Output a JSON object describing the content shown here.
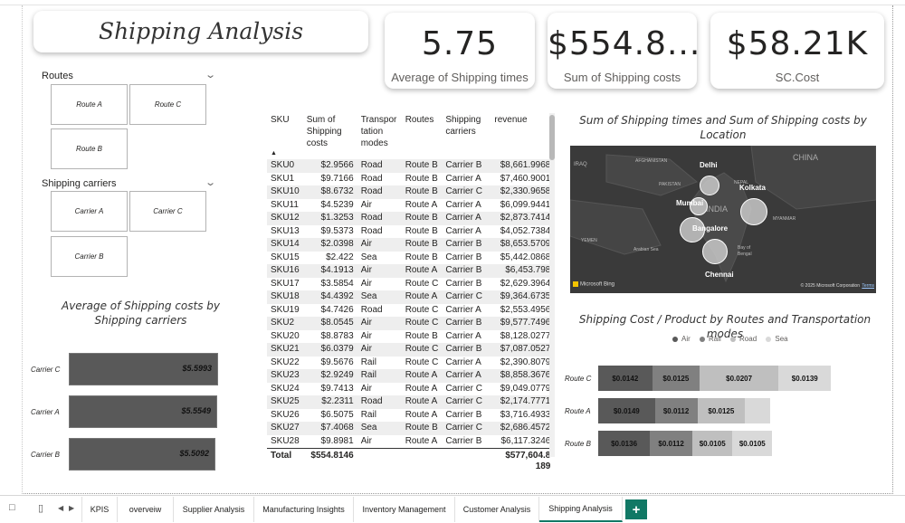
{
  "report_title": "Shipping Analysis",
  "kpis": [
    {
      "value": "5.75",
      "label": "Average of Shipping times"
    },
    {
      "value": "$554.8...",
      "label": "Sum of Shipping costs"
    },
    {
      "value": "$58.21K",
      "label": "SC.Cost"
    }
  ],
  "slicers": {
    "routes": {
      "title": "Routes",
      "items": [
        "Route A",
        "Route C",
        "Route B"
      ]
    },
    "carriers": {
      "title": "Shipping carriers",
      "items": [
        "Carrier A",
        "Carrier C",
        "Carrier B"
      ]
    }
  },
  "bar_chart": {
    "title": "Average of Shipping costs by Shipping carriers",
    "rows": [
      {
        "label": "Carrier C",
        "value": "$5.5993",
        "num": 5.5993
      },
      {
        "label": "Carrier A",
        "value": "$5.5549",
        "num": 5.5549
      },
      {
        "label": "Carrier B",
        "value": "$5.5092",
        "num": 5.5092
      }
    ]
  },
  "table": {
    "headers": [
      "SKU",
      "Sum of Shipping costs",
      "Transpor tation modes",
      "Routes",
      "Shipping carriers",
      "revenue"
    ],
    "rows": [
      [
        "SKU0",
        "$2.9566",
        "Road",
        "Route B",
        "Carrier B",
        "$8,661.9968"
      ],
      [
        "SKU1",
        "$9.7166",
        "Road",
        "Route B",
        "Carrier A",
        "$7,460.9001"
      ],
      [
        "SKU10",
        "$8.6732",
        "Road",
        "Route B",
        "Carrier C",
        "$2,330.9658"
      ],
      [
        "SKU11",
        "$4.5239",
        "Air",
        "Route A",
        "Carrier A",
        "$6,099.9441"
      ],
      [
        "SKU12",
        "$1.3253",
        "Road",
        "Route B",
        "Carrier A",
        "$2,873.7414"
      ],
      [
        "SKU13",
        "$9.5373",
        "Road",
        "Route B",
        "Carrier A",
        "$4,052.7384"
      ],
      [
        "SKU14",
        "$2.0398",
        "Air",
        "Route B",
        "Carrier B",
        "$8,653.5709"
      ],
      [
        "SKU15",
        "$2.422",
        "Sea",
        "Route B",
        "Carrier B",
        "$5,442.0868"
      ],
      [
        "SKU16",
        "$4.1913",
        "Air",
        "Route A",
        "Carrier B",
        "$6,453.798"
      ],
      [
        "SKU17",
        "$3.5854",
        "Air",
        "Route C",
        "Carrier B",
        "$2,629.3964"
      ],
      [
        "SKU18",
        "$4.4392",
        "Sea",
        "Route A",
        "Carrier C",
        "$9,364.6735"
      ],
      [
        "SKU19",
        "$4.7426",
        "Road",
        "Route C",
        "Carrier A",
        "$2,553.4956"
      ],
      [
        "SKU2",
        "$8.0545",
        "Air",
        "Route C",
        "Carrier B",
        "$9,577.7496"
      ],
      [
        "SKU20",
        "$8.8783",
        "Air",
        "Route B",
        "Carrier A",
        "$8,128.0277"
      ],
      [
        "SKU21",
        "$6.0379",
        "Air",
        "Route C",
        "Carrier B",
        "$7,087.0527"
      ],
      [
        "SKU22",
        "$9.5676",
        "Rail",
        "Route C",
        "Carrier A",
        "$2,390.8079"
      ],
      [
        "SKU23",
        "$2.9249",
        "Rail",
        "Route A",
        "Carrier A",
        "$8,858.3676"
      ],
      [
        "SKU24",
        "$9.7413",
        "Air",
        "Route A",
        "Carrier C",
        "$9,049.0779"
      ],
      [
        "SKU25",
        "$2.2311",
        "Road",
        "Route A",
        "Carrier C",
        "$2,174.7771"
      ],
      [
        "SKU26",
        "$6.5075",
        "Rail",
        "Route A",
        "Carrier B",
        "$3,716.4933"
      ],
      [
        "SKU27",
        "$7.4068",
        "Sea",
        "Route B",
        "Carrier C",
        "$2,686.4572"
      ],
      [
        "SKU28",
        "$9.8981",
        "Air",
        "Route A",
        "Carrier B",
        "$6,117.3246"
      ]
    ],
    "total": {
      "label": "Total",
      "costs": "$554.8146",
      "revenue_line1": "$577,604.8",
      "revenue_line2": "189"
    }
  },
  "map_chart": {
    "title": "Sum of Shipping times and Sum of Shipping costs by Location",
    "cities": [
      "Delhi",
      "Kolkata",
      "Mumbai",
      "Bangalore",
      "Chennai"
    ],
    "map_labels": [
      "IRAQ",
      "AFGHANISTAN",
      "PAKISTAN",
      "NEPAL",
      "CHINA",
      "MYANMAR",
      "YEMEN",
      "Arabian Sea",
      "Bay of Bengal",
      "INDIA"
    ],
    "attribution_left": "Microsoft Bing",
    "attribution_right": "© 2025 Microsoft Corporation",
    "terms": "Terms"
  },
  "stacked_chart": {
    "title": "Shipping Cost / Product by Routes and Transportation modes",
    "legend": [
      {
        "name": "Air",
        "color": "#595959"
      },
      {
        "name": "Rail",
        "color": "#808080"
      },
      {
        "name": "Road",
        "color": "#bfbfbf"
      },
      {
        "name": "Sea",
        "color": "#d9d9d9"
      }
    ],
    "rows": [
      {
        "route": "Route C",
        "segments": [
          {
            "mode": "Air",
            "label": "$0.0142",
            "value": 0.0142
          },
          {
            "mode": "Rail",
            "label": "$0.0125",
            "value": 0.0125
          },
          {
            "mode": "Road",
            "label": "$0.0207",
            "value": 0.0207
          },
          {
            "mode": "Sea",
            "label": "$0.0139",
            "value": 0.0139
          }
        ]
      },
      {
        "route": "Route A",
        "segments": [
          {
            "mode": "Air",
            "label": "$0.0149",
            "value": 0.0149
          },
          {
            "mode": "Rail",
            "label": "$0.0112",
            "value": 0.0112
          },
          {
            "mode": "Road",
            "label": "$0.0125",
            "value": 0.0125
          },
          {
            "mode": "Sea",
            "label": "",
            "value": 0.0066
          }
        ]
      },
      {
        "route": "Route B",
        "segments": [
          {
            "mode": "Air",
            "label": "$0.0136",
            "value": 0.0136
          },
          {
            "mode": "Rail",
            "label": "$0.0112",
            "value": 0.0112
          },
          {
            "mode": "Road",
            "label": "$0.0105",
            "value": 0.0105
          },
          {
            "mode": "Sea",
            "label": "$0.0105",
            "value": 0.0105
          }
        ]
      }
    ]
  },
  "tabs": {
    "items": [
      "KPIS",
      "overveiw",
      "Supplier Analysis",
      "Manufacturing Insights",
      "Inventory Management",
      "Customer Analysis",
      "Shipping Analysis"
    ],
    "active": "Shipping Analysis",
    "add": "+"
  }
}
